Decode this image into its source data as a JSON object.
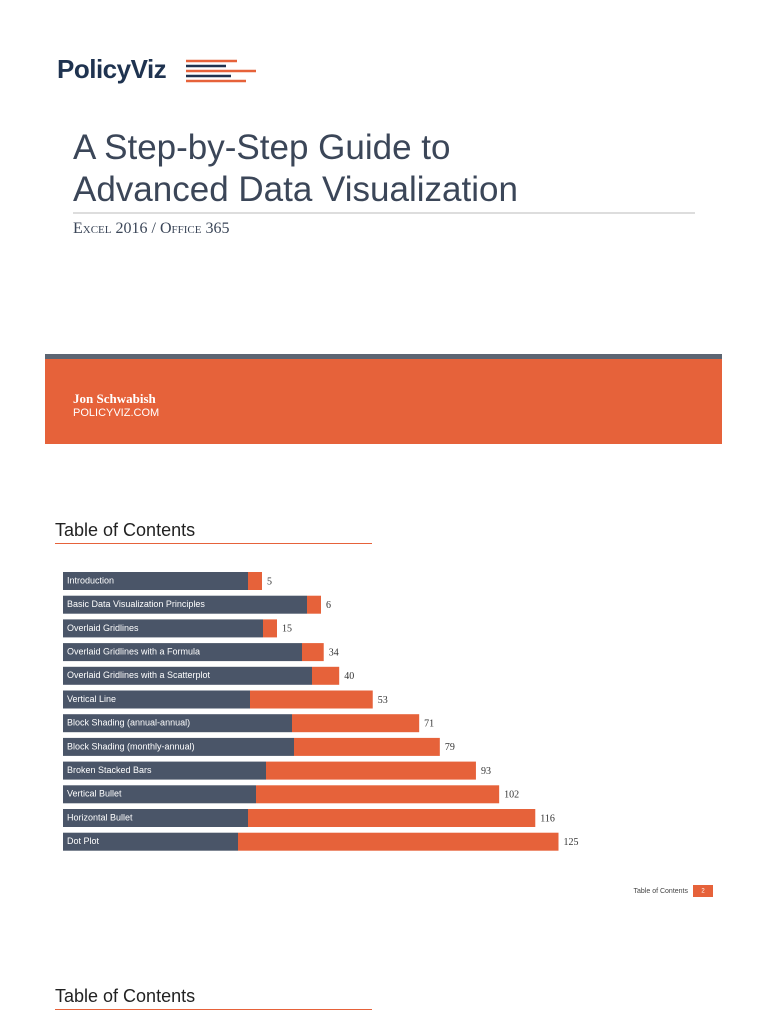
{
  "header": {
    "logo": "PolicyViz"
  },
  "title": {
    "line1": "A Step-by-Step Guide to",
    "line2": "Advanced Data Visualization"
  },
  "subtitle": "Excel 2016 / Office 365",
  "banner": {
    "author": "Jon Schwabish",
    "site": "POLICYVIZ.COM"
  },
  "toc": {
    "title": "Table of Contents",
    "entries": [
      {
        "label": "Introduction",
        "page": 5
      },
      {
        "label": "Basic Data Visualization Principles",
        "page": 6
      },
      {
        "label": "Overlaid Gridlines",
        "page": 15
      },
      {
        "label": "Overlaid Gridlines with a Formula",
        "page": 34
      },
      {
        "label": "Overlaid Gridlines with a Scatterplot",
        "page": 40
      },
      {
        "label": "Vertical Line",
        "page": 53
      },
      {
        "label": "Block Shading (annual-annual)",
        "page": 71
      },
      {
        "label": "Block Shading (monthly-annual)",
        "page": 79
      },
      {
        "label": "Broken Stacked Bars",
        "page": 93
      },
      {
        "label": "Vertical Bullet",
        "page": 102
      },
      {
        "label": "Horizontal Bullet",
        "page": 116
      },
      {
        "label": "Dot Plot",
        "page": 125
      }
    ]
  },
  "footer": {
    "label": "Table of Contents",
    "page": 2
  },
  "next_section": {
    "title": "Table of Contents"
  }
}
